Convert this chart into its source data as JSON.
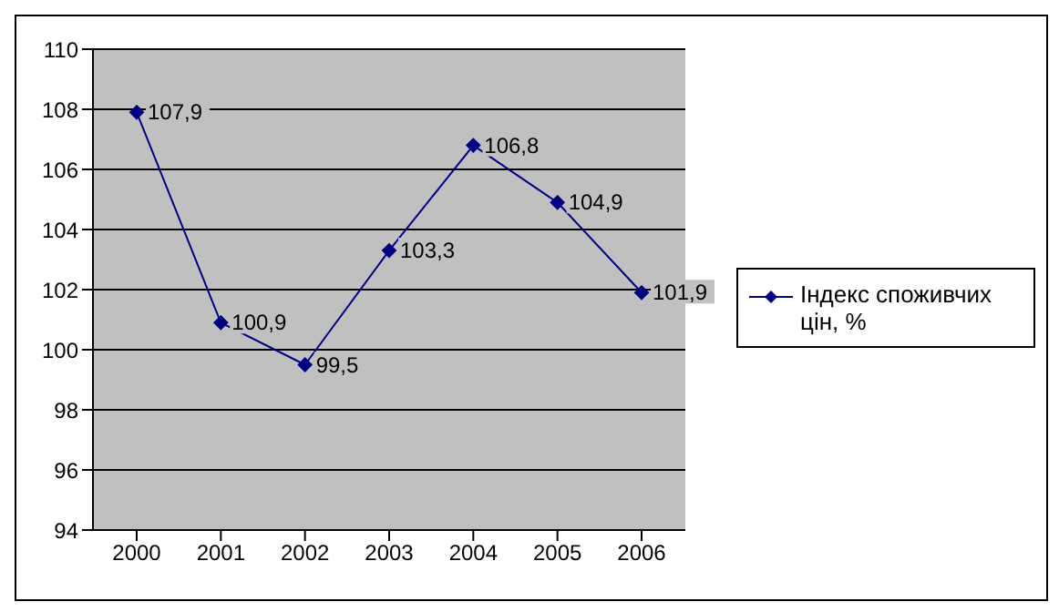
{
  "chart_data": {
    "type": "line",
    "categories": [
      "2000",
      "2001",
      "2002",
      "2003",
      "2004",
      "2005",
      "2006"
    ],
    "series": [
      {
        "name": "Індекс споживчих цін, %",
        "color": "#000080",
        "values": [
          107.9,
          100.9,
          99.5,
          103.3,
          106.8,
          104.9,
          101.9
        ],
        "value_labels": [
          "107,9",
          "100,9",
          "99,5",
          "103,3",
          "106,8",
          "104,9",
          "101,9"
        ]
      }
    ],
    "ylim": [
      94,
      110
    ],
    "yticks": [
      94,
      96,
      98,
      100,
      102,
      104,
      106,
      108,
      110
    ],
    "grid": "y",
    "legend": "right",
    "marker": "diamond",
    "line_style": "solid"
  }
}
